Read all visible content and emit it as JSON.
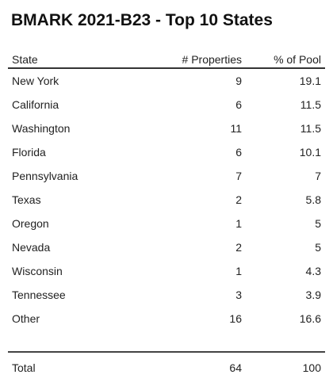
{
  "title": "BMARK 2021-B23 - Top 10 States",
  "columns": {
    "state": "State",
    "properties": "# Properties",
    "pool": "% of Pool"
  },
  "chart_data": {
    "type": "table",
    "title": "BMARK 2021-B23 - Top 10 States",
    "columns": [
      "State",
      "# Properties",
      "% of Pool"
    ],
    "rows": [
      {
        "state": "New York",
        "properties": "9",
        "pool": "19.1"
      },
      {
        "state": "California",
        "properties": "6",
        "pool": "11.5"
      },
      {
        "state": "Washington",
        "properties": "11",
        "pool": "11.5"
      },
      {
        "state": "Florida",
        "properties": "6",
        "pool": "10.1"
      },
      {
        "state": "Pennsylvania",
        "properties": "7",
        "pool": "7"
      },
      {
        "state": "Texas",
        "properties": "2",
        "pool": "5.8"
      },
      {
        "state": "Oregon",
        "properties": "1",
        "pool": "5"
      },
      {
        "state": "Nevada",
        "properties": "2",
        "pool": "5"
      },
      {
        "state": "Wisconsin",
        "properties": "1",
        "pool": "4.3"
      },
      {
        "state": "Tennessee",
        "properties": "3",
        "pool": "3.9"
      },
      {
        "state": "Other",
        "properties": "16",
        "pool": "16.6"
      }
    ],
    "total": {
      "state": "Total",
      "properties": "64",
      "pool": "100"
    }
  }
}
